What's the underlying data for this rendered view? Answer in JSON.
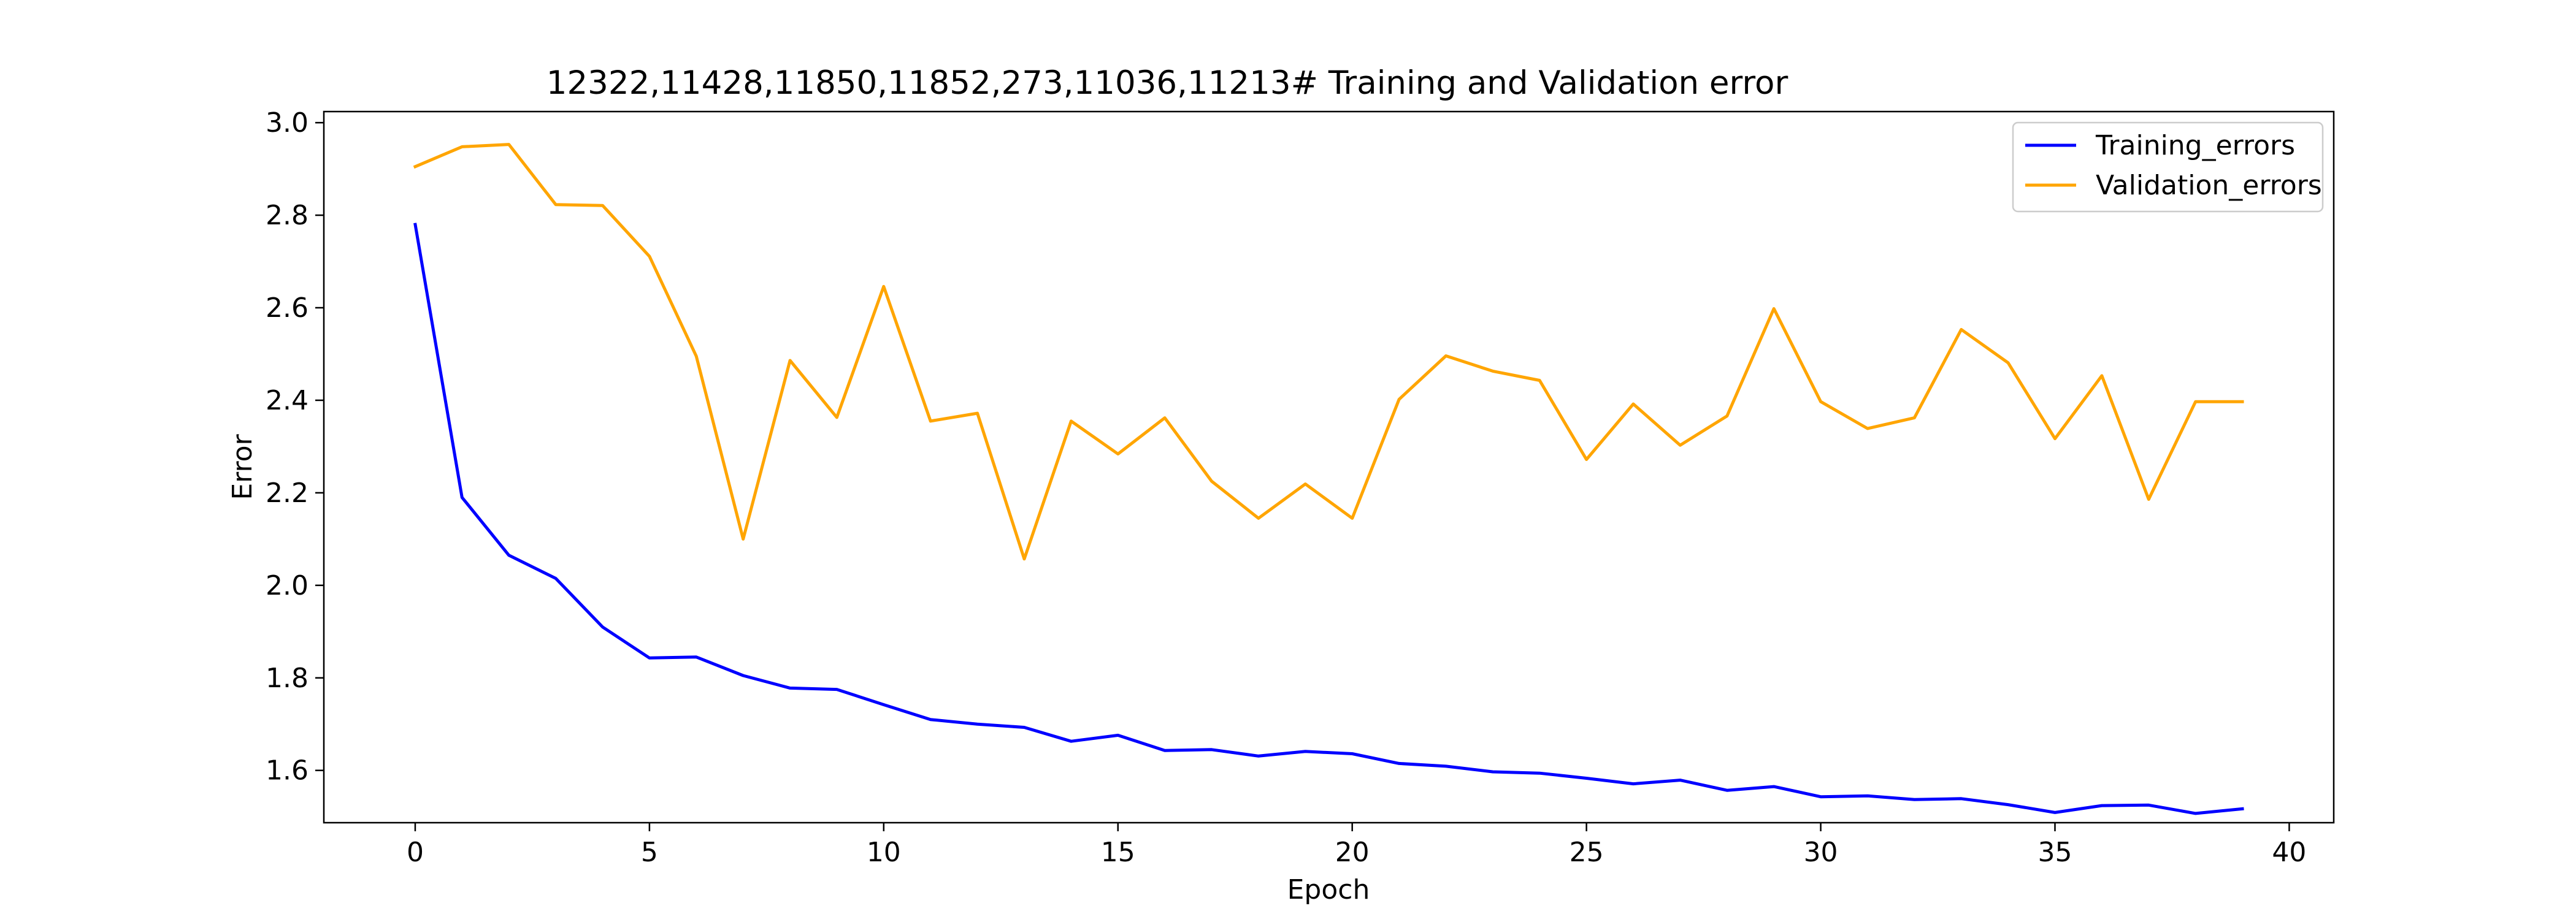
{
  "chart_data": {
    "type": "line",
    "title": "12322,11428,11850,11852,273,11036,11213# Training and Validation error",
    "xlabel": "Epoch",
    "ylabel": "Error",
    "xlim": [
      -1.95,
      40.95
    ],
    "ylim": [
      1.487,
      3.024
    ],
    "xticks": [
      0,
      5,
      10,
      15,
      20,
      25,
      30,
      35,
      40
    ],
    "yticks": [
      1.6,
      1.8,
      2.0,
      2.2,
      2.4,
      2.6,
      2.8,
      3.0
    ],
    "x": [
      0,
      1,
      2,
      3,
      4,
      5,
      6,
      7,
      8,
      9,
      10,
      11,
      12,
      13,
      14,
      15,
      16,
      17,
      18,
      19,
      20,
      21,
      22,
      23,
      24,
      25,
      26,
      27,
      28,
      29,
      30,
      31,
      32,
      33,
      34,
      35,
      36,
      37,
      38,
      39
    ],
    "series": [
      {
        "name": "Training_errors",
        "color": "#0000ff",
        "values": [
          2.78,
          2.19,
          2.065,
          2.015,
          1.91,
          1.843,
          1.845,
          1.805,
          1.778,
          1.775,
          1.742,
          1.71,
          1.7,
          1.693,
          1.663,
          1.676,
          1.643,
          1.645,
          1.631,
          1.641,
          1.636,
          1.615,
          1.609,
          1.597,
          1.594,
          1.583,
          1.571,
          1.579,
          1.557,
          1.565,
          1.543,
          1.545,
          1.537,
          1.539,
          1.526,
          1.509,
          1.524,
          1.525,
          1.507,
          1.517
        ]
      },
      {
        "name": "Validation_errors",
        "color": "#ffa500",
        "values": [
          2.905,
          2.948,
          2.953,
          2.823,
          2.821,
          2.711,
          2.495,
          2.1,
          2.486,
          2.363,
          2.646,
          2.355,
          2.372,
          2.057,
          2.355,
          2.284,
          2.362,
          2.225,
          2.145,
          2.219,
          2.145,
          2.402,
          2.496,
          2.463,
          2.443,
          2.272,
          2.392,
          2.303,
          2.366,
          2.598,
          2.397,
          2.339,
          2.362,
          2.553,
          2.481,
          2.317,
          2.453,
          2.186,
          2.397,
          2.397
        ]
      }
    ],
    "legend": {
      "placement": "top-right"
    },
    "grid": false
  }
}
